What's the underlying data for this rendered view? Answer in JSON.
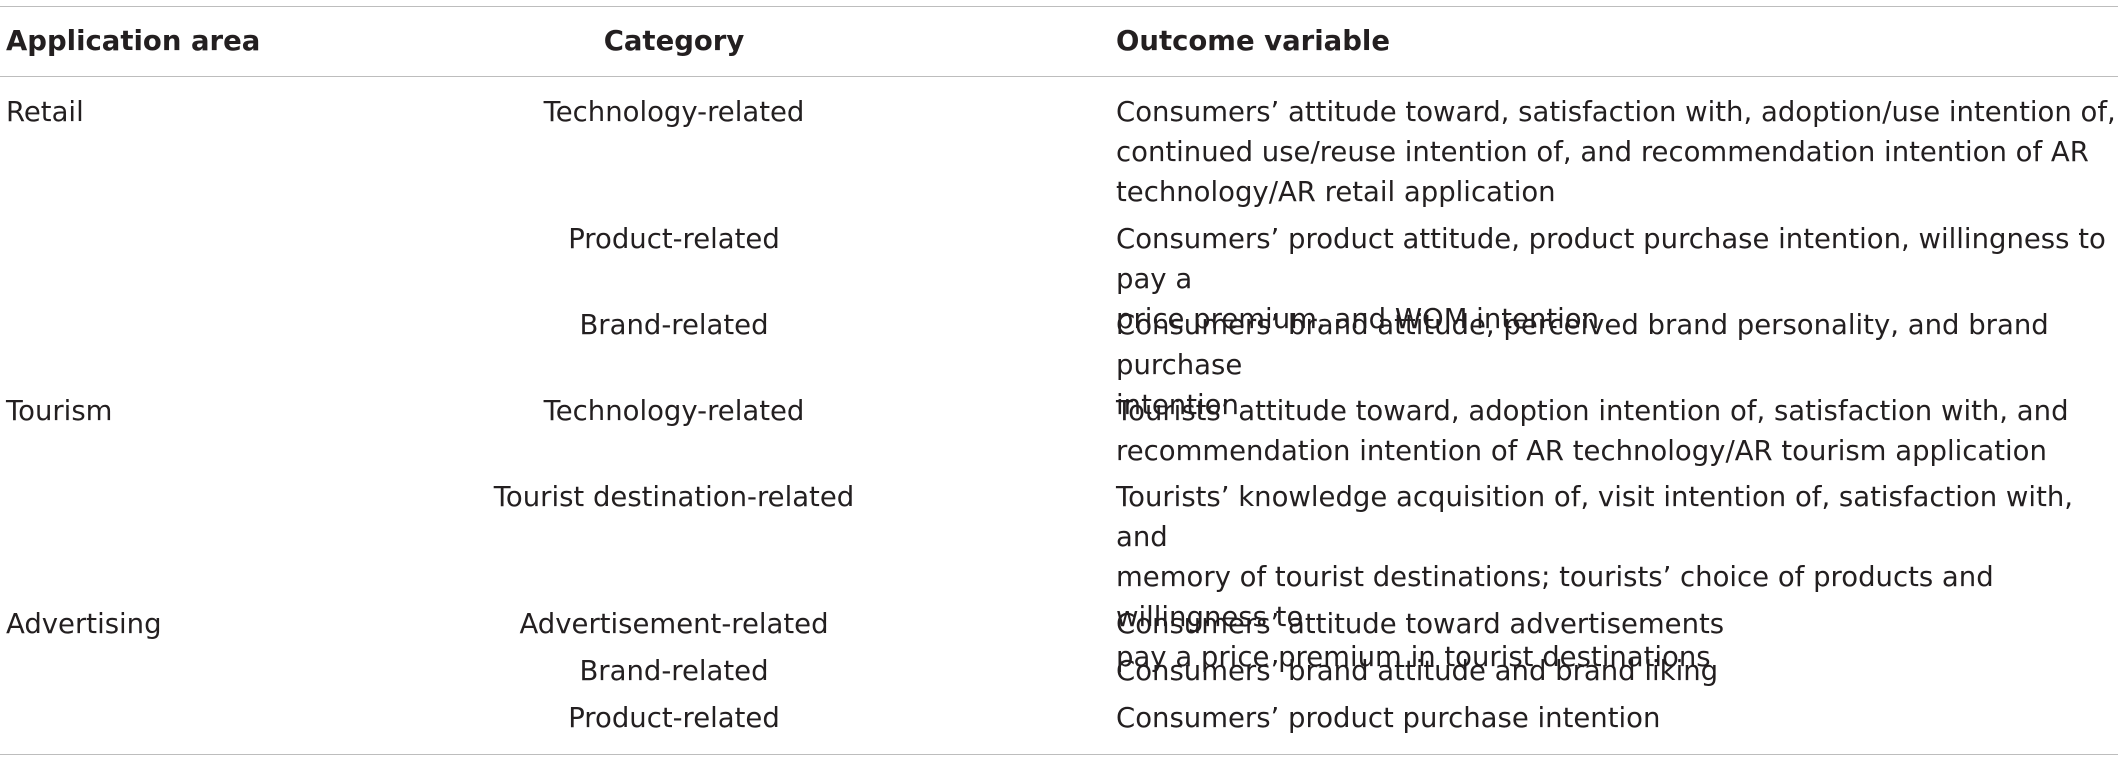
{
  "table": {
    "headers": {
      "application_area": "Application area",
      "category": "Category",
      "outcome_variable": "Outcome variable"
    },
    "rows": [
      {
        "application_area": "Retail",
        "category": "Technology-related",
        "outcome_lines": [
          "Consumers’ attitude toward, satisfaction with, adoption/use intention of,",
          "continued use/reuse intention of, and recommendation intention of AR",
          "technology/AR retail application"
        ]
      },
      {
        "application_area": "",
        "category": "Product-related",
        "outcome_lines": [
          "Consumers’ product attitude, product purchase intention, willingness to pay a",
          "price premium, and WOM intention"
        ]
      },
      {
        "application_area": "",
        "category": "Brand-related",
        "outcome_lines": [
          "Consumers’ brand attitude, perceived brand personality, and brand purchase",
          "intention"
        ]
      },
      {
        "application_area": "Tourism",
        "category": "Technology-related",
        "outcome_lines": [
          "Tourists’ attitude toward, adoption intention of, satisfaction with, and",
          "recommendation intention of AR technology/AR tourism application"
        ]
      },
      {
        "application_area": "",
        "category": "Tourist destination-related",
        "outcome_lines": [
          "Tourists’ knowledge acquisition of, visit intention of, satisfaction with, and",
          "memory of tourist destinations; tourists’ choice of products and willingness to",
          "pay a price premium in tourist destinations"
        ]
      },
      {
        "application_area": "Advertising",
        "category": "Advertisement-related",
        "outcome_lines": [
          "Consumers’ attitude toward advertisements"
        ]
      },
      {
        "application_area": "",
        "category": "Brand-related",
        "outcome_lines": [
          "Consumers’ brand attitude and brand liking"
        ]
      },
      {
        "application_area": "",
        "category": "Product-related",
        "outcome_lines": [
          "Consumers’ product purchase intention"
        ]
      }
    ]
  }
}
